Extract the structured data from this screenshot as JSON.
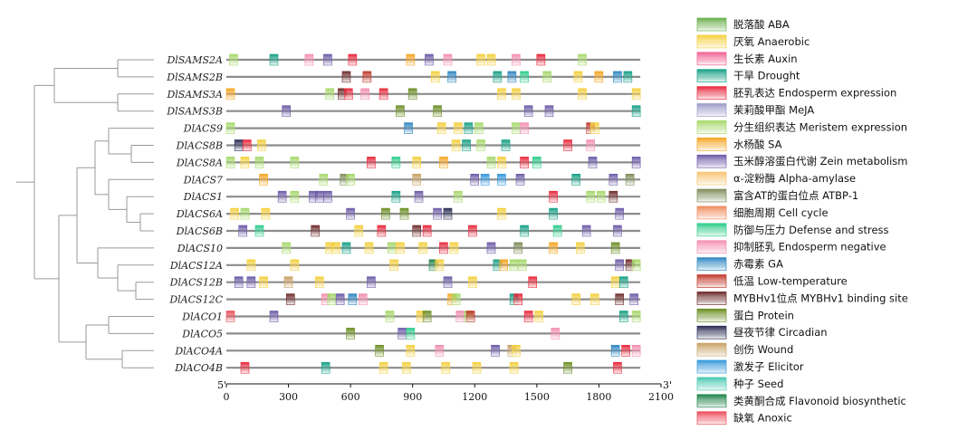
{
  "genes": [
    {
      "name": "DlSAMS2A",
      "elements": [
        [
          15,
          "Meristem"
        ],
        [
          210,
          "Drought"
        ],
        [
          380,
          "Endosperm-negative"
        ],
        [
          470,
          "Zein"
        ],
        [
          590,
          "Endosperm-expression"
        ],
        [
          870,
          "SA"
        ],
        [
          960,
          "Zein"
        ],
        [
          1050,
          "Endosperm-negative"
        ],
        [
          1210,
          "Anaerobic"
        ],
        [
          1260,
          "Anaerobic"
        ],
        [
          1380,
          "Endosperm-negative"
        ],
        [
          1500,
          "Endosperm-expression"
        ],
        [
          1700,
          "Meristem"
        ]
      ]
    },
    {
      "name": "DlSAMS2B",
      "elements": [
        [
          560,
          "MYBHv1"
        ],
        [
          660,
          "Low-temp"
        ],
        [
          990,
          "Anaerobic"
        ],
        [
          1070,
          "GA"
        ],
        [
          1290,
          "Drought"
        ],
        [
          1360,
          "GA"
        ],
        [
          1420,
          "Defense"
        ],
        [
          1530,
          "Meristem"
        ],
        [
          1680,
          "Anaerobic"
        ],
        [
          1780,
          "SA"
        ],
        [
          1870,
          "GA"
        ],
        [
          1920,
          "Drought"
        ]
      ]
    },
    {
      "name": "DlSAMS3A",
      "elements": [
        [
          0,
          "SA"
        ],
        [
          480,
          "Meristem"
        ],
        [
          540,
          "MYBHv1"
        ],
        [
          570,
          "Endosperm-expression"
        ],
        [
          650,
          "Endosperm-negative"
        ],
        [
          740,
          "Endosperm-expression"
        ],
        [
          880,
          "Protein"
        ],
        [
          1310,
          "Anaerobic"
        ],
        [
          1380,
          "Anaerobic"
        ],
        [
          1700,
          "Anaerobic"
        ],
        [
          2020,
          "Anaerobic"
        ]
      ]
    },
    {
      "name": "DlSAMS3B",
      "elements": [
        [
          270,
          "Zein"
        ],
        [
          820,
          "Protein"
        ],
        [
          1000,
          "Protein"
        ],
        [
          1440,
          "Zein"
        ],
        [
          1540,
          "Zein"
        ],
        [
          2020,
          "Drought"
        ]
      ]
    },
    {
      "name": "DlACS9",
      "elements": [
        [
          0,
          "Meristem"
        ],
        [
          860,
          "GA"
        ],
        [
          1020,
          "Anaerobic"
        ],
        [
          1100,
          "Anaerobic"
        ],
        [
          1150,
          "Drought"
        ],
        [
          1200,
          "Meristem"
        ],
        [
          1380,
          "Meristem"
        ],
        [
          1420,
          "Endosperm-negative"
        ],
        [
          1740,
          "Low-temp"
        ],
        [
          1760,
          "Anaerobic"
        ]
      ]
    },
    {
      "name": "DlACS8B",
      "elements": [
        [
          40,
          "Circadian"
        ],
        [
          80,
          "Endosperm-expression"
        ],
        [
          150,
          "Anaerobic"
        ],
        [
          1090,
          "Anaerobic"
        ],
        [
          1140,
          "Drought"
        ],
        [
          1210,
          "Meristem"
        ],
        [
          1330,
          "Drought"
        ],
        [
          1630,
          "Endosperm-expression"
        ],
        [
          1740,
          "Endosperm-negative"
        ]
      ]
    },
    {
      "name": "DlACS8A",
      "elements": [
        [
          0,
          "Meristem"
        ],
        [
          70,
          "Anaerobic"
        ],
        [
          140,
          "Meristem"
        ],
        [
          310,
          "Meristem"
        ],
        [
          680,
          "Endosperm-expression"
        ],
        [
          800,
          "Defense"
        ],
        [
          900,
          "Anaerobic"
        ],
        [
          1030,
          "SA"
        ],
        [
          1260,
          "Meristem"
        ],
        [
          1310,
          "Anaerobic"
        ],
        [
          1420,
          "Endosperm-expression"
        ],
        [
          1480,
          "Defense"
        ],
        [
          1750,
          "Zein"
        ],
        [
          1980,
          "Zein"
        ]
      ]
    },
    {
      "name": "DlACS7",
      "elements": [
        [
          160,
          "SA"
        ],
        [
          450,
          "Meristem"
        ],
        [
          550,
          "ATBP"
        ],
        [
          580,
          "Meristem"
        ],
        [
          900,
          "Wound"
        ],
        [
          1180,
          "Zein"
        ],
        [
          1230,
          "Elicitor"
        ],
        [
          1310,
          "Elicitor"
        ],
        [
          1400,
          "Zein"
        ],
        [
          1670,
          "Drought"
        ],
        [
          1850,
          "Zein"
        ],
        [
          1930,
          "ATBP"
        ]
      ]
    },
    {
      "name": "DlACS1",
      "elements": [
        [
          250,
          "Zein"
        ],
        [
          310,
          "Meristem"
        ],
        [
          400,
          "Zein"
        ],
        [
          430,
          "Zein"
        ],
        [
          470,
          "Zein"
        ],
        [
          800,
          "Drought"
        ],
        [
          910,
          "Zein"
        ],
        [
          1100,
          "Meristem"
        ],
        [
          1560,
          "Endosperm-expression"
        ],
        [
          1740,
          "Meristem"
        ],
        [
          1790,
          "Meristem"
        ],
        [
          1850,
          "MYBHv1"
        ]
      ]
    },
    {
      "name": "DlACS6A",
      "elements": [
        [
          20,
          "Anaerobic"
        ],
        [
          70,
          "Meristem"
        ],
        [
          170,
          "Anaerobic"
        ],
        [
          580,
          "Zein"
        ],
        [
          750,
          "Protein"
        ],
        [
          840,
          "Protein"
        ],
        [
          1000,
          "Zein"
        ],
        [
          1050,
          "Circadian"
        ],
        [
          1310,
          "Anaerobic"
        ],
        [
          1560,
          "Drought"
        ],
        [
          1880,
          "Zein"
        ]
      ]
    },
    {
      "name": "DlACS6B",
      "elements": [
        [
          60,
          "Zein"
        ],
        [
          140,
          "Defense"
        ],
        [
          410,
          "MYBHv1"
        ],
        [
          620,
          "Anaerobic"
        ],
        [
          730,
          "Endosperm-expression"
        ],
        [
          900,
          "MYBHv1"
        ],
        [
          950,
          "Endosperm-expression"
        ],
        [
          1170,
          "Endosperm-expression"
        ],
        [
          1420,
          "Drought"
        ],
        [
          1580,
          "Defense"
        ],
        [
          1720,
          "Zein"
        ],
        [
          1870,
          "Zein"
        ]
      ]
    },
    {
      "name": "DlACS10",
      "elements": [
        [
          270,
          "Meristem"
        ],
        [
          480,
          "Anaerobic"
        ],
        [
          510,
          "Anaerobic"
        ],
        [
          560,
          "Drought"
        ],
        [
          670,
          "Anaerobic"
        ],
        [
          780,
          "Meristem"
        ],
        [
          820,
          "Anaerobic"
        ],
        [
          930,
          "Anaerobic"
        ],
        [
          1030,
          "Endosperm-expression"
        ],
        [
          1080,
          "Anaerobic"
        ],
        [
          1260,
          "Zein"
        ],
        [
          1390,
          "ATBP"
        ],
        [
          1560,
          "SA"
        ],
        [
          1690,
          "Anaerobic"
        ],
        [
          1860,
          "Protein"
        ]
      ]
    },
    {
      "name": "DlACS12A",
      "elements": [
        [
          100,
          "Anaerobic"
        ],
        [
          310,
          "Anaerobic"
        ],
        [
          790,
          "Anaerobic"
        ],
        [
          980,
          "Flavonoid"
        ],
        [
          1010,
          "Anaerobic"
        ],
        [
          1290,
          "Drought"
        ],
        [
          1320,
          "SA"
        ],
        [
          1370,
          "Meristem"
        ],
        [
          1410,
          "Meristem"
        ],
        [
          1880,
          "Zein"
        ],
        [
          1930,
          "MYBHv1"
        ],
        [
          1980,
          "Meristem"
        ]
      ]
    },
    {
      "name": "DlACS12B",
      "elements": [
        [
          40,
          "Zein"
        ],
        [
          100,
          "Zein"
        ],
        [
          160,
          "Anaerobic"
        ],
        [
          280,
          "Wound"
        ],
        [
          430,
          "Anaerobic"
        ],
        [
          680,
          "Zein"
        ],
        [
          1050,
          "Zein"
        ],
        [
          1170,
          "Anaerobic"
        ],
        [
          1460,
          "Endosperm-expression"
        ],
        [
          1860,
          "Anaerobic"
        ],
        [
          1900,
          "Drought"
        ]
      ]
    },
    {
      "name": "DlACS12C",
      "elements": [
        [
          290,
          "MYBHv1"
        ],
        [
          460,
          "Endosperm-negative"
        ],
        [
          490,
          "Meristem"
        ],
        [
          530,
          "Zein"
        ],
        [
          590,
          "GA"
        ],
        [
          640,
          "Endosperm-negative"
        ],
        [
          1070,
          "SA"
        ],
        [
          1090,
          "Meristem"
        ],
        [
          1370,
          "Drought"
        ],
        [
          1390,
          "Endosperm-expression"
        ],
        [
          1670,
          "Anaerobic"
        ],
        [
          1760,
          "Anaerobic"
        ],
        [
          1880,
          "MYBHv1"
        ],
        [
          1950,
          "Zein"
        ]
      ]
    },
    {
      "name": "DlACO1",
      "elements": [
        [
          0,
          "Anoxic"
        ],
        [
          210,
          "Zein"
        ],
        [
          770,
          "Meristem"
        ],
        [
          920,
          "Anaerobic"
        ],
        [
          950,
          "Protein"
        ],
        [
          1110,
          "Endosperm-negative"
        ],
        [
          1150,
          "Meristem"
        ],
        [
          1160,
          "Low-temp"
        ],
        [
          1440,
          "Endosperm-expression"
        ],
        [
          1490,
          "Anaerobic"
        ],
        [
          1900,
          "Drought"
        ],
        [
          1980,
          "Meristem"
        ]
      ]
    },
    {
      "name": "DlACO5",
      "elements": [
        [
          580,
          "Protein"
        ],
        [
          830,
          "Zein"
        ],
        [
          870,
          "Defense"
        ],
        [
          1570,
          "Endosperm-negative"
        ]
      ]
    },
    {
      "name": "DlACO4A",
      "elements": [
        [
          720,
          "Protein"
        ],
        [
          870,
          "Anaerobic"
        ],
        [
          1010,
          "Endosperm-negative"
        ],
        [
          1280,
          "Zein"
        ],
        [
          1360,
          "Wound"
        ],
        [
          1380,
          "Anaerobic"
        ],
        [
          1860,
          "GA"
        ],
        [
          1910,
          "Endosperm-expression"
        ],
        [
          1990,
          "Endosperm-negative"
        ]
      ]
    },
    {
      "name": "DlACO4B",
      "elements": [
        [
          70,
          "Endosperm-expression"
        ],
        [
          460,
          "Drought"
        ],
        [
          740,
          "Anaerobic"
        ],
        [
          850,
          "Anaerobic"
        ],
        [
          1040,
          "Anaerobic"
        ],
        [
          1190,
          "Anaerobic"
        ],
        [
          1370,
          "Anaerobic"
        ],
        [
          1630,
          "Protein"
        ],
        [
          1870,
          "Endosperm-expression"
        ]
      ]
    }
  ],
  "axis": {
    "ticks": [
      0,
      300,
      600,
      900,
      1200,
      1500,
      1800,
      2100
    ],
    "min": 0,
    "max": 2100,
    "seq_length": 2000,
    "start_label": "5'",
    "end_label": "3'"
  },
  "legend": [
    {
      "key": "ABA",
      "label": "脱落酸 ABA",
      "color": "#6ab04c"
    },
    {
      "key": "Anaerobic",
      "label": "厌氧 Anaerobic",
      "color": "#f4d03f"
    },
    {
      "key": "Auxin",
      "label": "生长素 Auxin",
      "color": "#f06292"
    },
    {
      "key": "Drought",
      "label": "干旱 Drought",
      "color": "#16a085"
    },
    {
      "key": "Endosperm-expression",
      "label": "胚乳表达 Endosperm expression",
      "color": "#e8283c"
    },
    {
      "key": "MeJA",
      "label": "茉莉酸甲酯 MeJA",
      "color": "#9e9ac8"
    },
    {
      "key": "Meristem",
      "label": "分生组织表达 Meristem expression",
      "color": "#a6d96a"
    },
    {
      "key": "SA",
      "label": "水杨酸 SA",
      "color": "#f5a623"
    },
    {
      "key": "Zein",
      "label": "玉米醇溶蛋白代谢 Zein metabolism",
      "color": "#6c5ba8"
    },
    {
      "key": "Alpha-amylase",
      "label": "α-淀粉酶 Alpha-amylase",
      "color": "#f8c471"
    },
    {
      "key": "ATBP",
      "label": "富含AT的蛋白位点 ATBP-1",
      "color": "#7f8c5a"
    },
    {
      "key": "Cell-cycle",
      "label": "细胞周期 Cell cycle",
      "color": "#f08a5d"
    },
    {
      "key": "Defense",
      "label": "防御与压力 Defense and stress",
      "color": "#2ecc8a"
    },
    {
      "key": "Endosperm-negative",
      "label": "抑制胚乳 Endosperm negative",
      "color": "#f48fb1"
    },
    {
      "key": "GA",
      "label": "赤霉素 GA",
      "color": "#2e86c1"
    },
    {
      "key": "Low-temp",
      "label": "低温 Low-temperature",
      "color": "#c0392b"
    },
    {
      "key": "MYBHv1",
      "label": "MYBHv1位点 MYBHv1 binding site",
      "color": "#6e2c2c"
    },
    {
      "key": "Protein",
      "label": "蛋白 Protein",
      "color": "#6b8e23"
    },
    {
      "key": "Circadian",
      "label": "昼夜节律 Circadian",
      "color": "#2c2c54"
    },
    {
      "key": "Wound",
      "label": "创伤 Wound",
      "color": "#c8a165"
    },
    {
      "key": "Elicitor",
      "label": "激发子 Elicitor",
      "color": "#3498db"
    },
    {
      "key": "Seed",
      "label": "种子 Seed",
      "color": "#48c9b0"
    },
    {
      "key": "Flavonoid",
      "label": "类黄酮合成 Flavonoid biosynthetic",
      "color": "#1e8449"
    },
    {
      "key": "Anoxic",
      "label": "缺氧 Anoxic",
      "color": "#ec4d5a"
    }
  ]
}
